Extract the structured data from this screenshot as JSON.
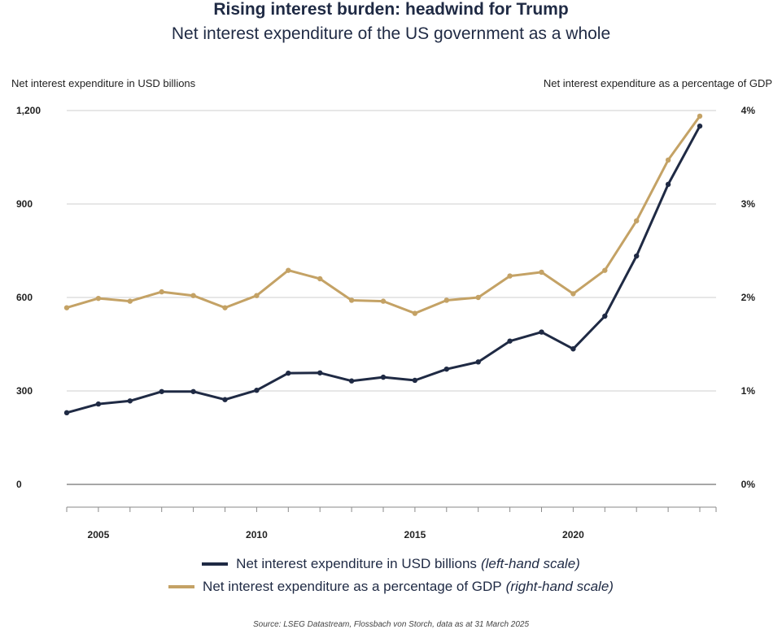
{
  "header": {
    "title": "Rising interest burden: headwind for Trump",
    "subtitle": "Net interest expenditure of the US government as a whole"
  },
  "axes": {
    "left_title": "Net interest expenditure in USD billions",
    "right_title": "Net interest expenditure as a percentage of GDP"
  },
  "legend": {
    "items": [
      {
        "label": "Net interest expenditure in USD billions",
        "note": "(left-hand scale)",
        "color": "#1f2a44"
      },
      {
        "label": "Net interest expenditure as a percentage of GDP",
        "note": "(right-hand scale)",
        "color": "#c4a265"
      }
    ]
  },
  "footer": {
    "source": "Source: LSEG Datastream, Flossbach von Storch, data as at 31 March 2025"
  },
  "chart_data": {
    "type": "line",
    "x": [
      2004,
      2005,
      2006,
      2007,
      2008,
      2009,
      2010,
      2011,
      2012,
      2013,
      2014,
      2015,
      2016,
      2017,
      2018,
      2019,
      2020,
      2021,
      2022,
      2023,
      2024
    ],
    "series": [
      {
        "name": "Net interest expenditure in USD billions",
        "axis": "left",
        "color": "#1f2a44",
        "values": [
          230,
          258,
          268,
          298,
          298,
          272,
          302,
          357,
          358,
          332,
          344,
          334,
          370,
          393,
          460,
          489,
          435,
          540,
          733,
          963,
          1150
        ]
      },
      {
        "name": "Net interest expenditure as a percentage of GDP",
        "axis": "right",
        "color": "#c4a265",
        "values": [
          1.89,
          1.99,
          1.96,
          2.06,
          2.02,
          1.89,
          2.02,
          2.29,
          2.2,
          1.97,
          1.96,
          1.83,
          1.97,
          2.0,
          2.23,
          2.27,
          2.04,
          2.29,
          2.82,
          3.47,
          3.94
        ]
      }
    ],
    "left_axis": {
      "ylim": [
        0,
        1200
      ],
      "ticks": [
        0,
        300,
        600,
        900,
        1200
      ],
      "tick_labels": [
        "0",
        "300",
        "600",
        "900",
        "1,200"
      ]
    },
    "right_axis": {
      "ylim": [
        0,
        4
      ],
      "ticks": [
        0,
        1,
        2,
        3,
        4
      ],
      "tick_labels": [
        "0%",
        "1%",
        "2%",
        "3%",
        "4%"
      ]
    },
    "x_tick_labels": [
      {
        "year": 2005,
        "label": "2005"
      },
      {
        "year": 2010,
        "label": "2010"
      },
      {
        "year": 2015,
        "label": "2015"
      },
      {
        "year": 2020,
        "label": "2020"
      }
    ],
    "grid": "horizontal"
  }
}
